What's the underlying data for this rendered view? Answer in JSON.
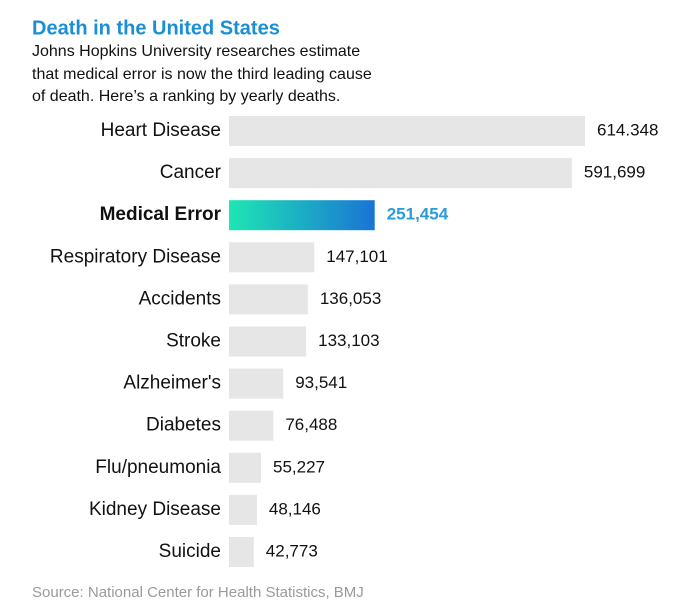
{
  "chart_data": {
    "type": "bar",
    "orientation": "horizontal",
    "title": "Death in the United States",
    "subtitle": [
      "Johns Hopkins University researches estimate",
      "that medical error is now the third leading cause",
      "of death. Here’s a ranking by yearly deaths."
    ],
    "categories": [
      "Heart Disease",
      "Cancer",
      "Medical Error",
      "Respiratory Disease",
      "Accidents",
      "Stroke",
      "Alzheimer's",
      "Diabetes",
      "Flu/pneumonia",
      "Kidney Disease",
      "Suicide"
    ],
    "values": [
      614348,
      591699,
      251454,
      147101,
      136053,
      133103,
      93541,
      76488,
      55227,
      48146,
      42773
    ],
    "value_labels": [
      "614.348",
      "591,699",
      "251,454",
      "147,101",
      "136,053",
      "133,103",
      "93,541",
      "76,488",
      "55,227",
      "48,146",
      "42,773"
    ],
    "color": "#e6e6e6",
    "highlight": {
      "index": 2,
      "colors": [
        "#1ee6b4",
        "#1a74d4"
      ],
      "label_color": "#2b9bd9"
    },
    "source": "Source: National Center for Health Statistics, BMJ"
  }
}
